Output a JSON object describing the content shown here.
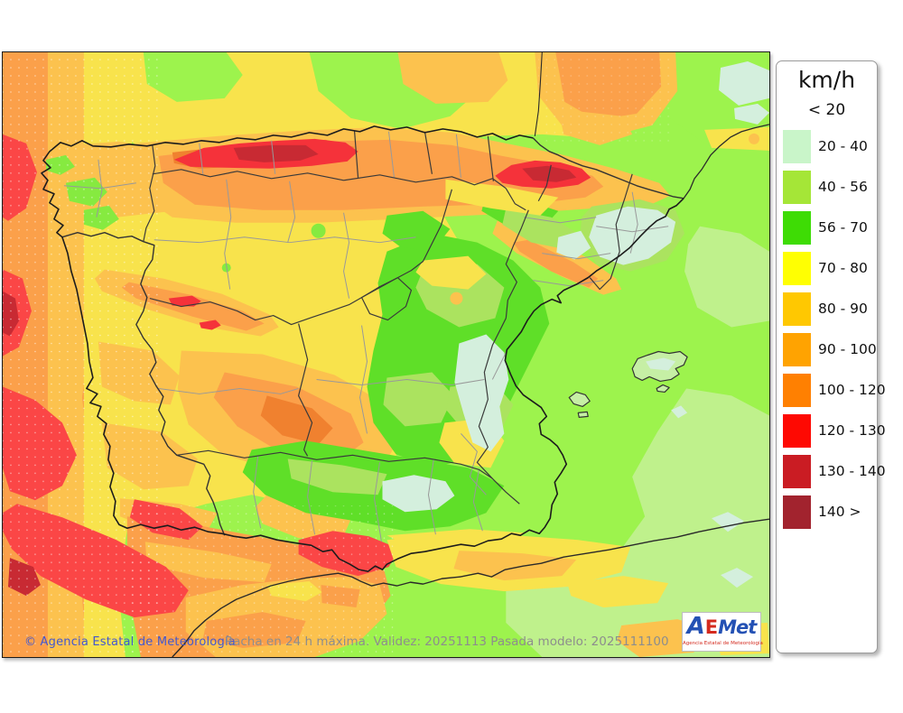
{
  "legend": {
    "title": "km/h",
    "below_threshold_label": "< 20",
    "unit_items": [
      {
        "label": "20 - 40",
        "color": "#c9f5c9"
      },
      {
        "label": "40 - 56",
        "color": "#a5e637"
      },
      {
        "label": "56 - 70",
        "color": "#3edc05"
      },
      {
        "label": "70 - 80",
        "color": "#ffff02"
      },
      {
        "label": "80 - 90",
        "color": "#ffc801"
      },
      {
        "label": "90 - 100",
        "color": "#ffa301"
      },
      {
        "label": "100 - 120",
        "color": "#ff8001"
      },
      {
        "label": "120 - 130",
        "color": "#fe0902"
      },
      {
        "label": "130 - 140",
        "color": "#ca1c23"
      },
      {
        "label": "140 >",
        "color": "#a2232e"
      }
    ]
  },
  "map": {
    "copyright": "© Agencia Estatal de Meteorología",
    "caption": "Racha en 24 h máxima. Validez: 20251113 Pasada modelo: 2025111100",
    "colors": {
      "sea_base_green": "#9df34d",
      "pale_green": "#bff18c",
      "mint": "#d4efdd",
      "yellow": "#f8e34c",
      "amber": "#fcc24e",
      "orange": "#fba04a",
      "red": "#fb4646",
      "mountain_red": "#f5323a",
      "dark_red": "#c82a33"
    }
  },
  "logo": {
    "letter_a": "A",
    "letter_e": "E",
    "letters_met": "Met",
    "subtitle": "Agencia Estatal de Meteorología"
  }
}
